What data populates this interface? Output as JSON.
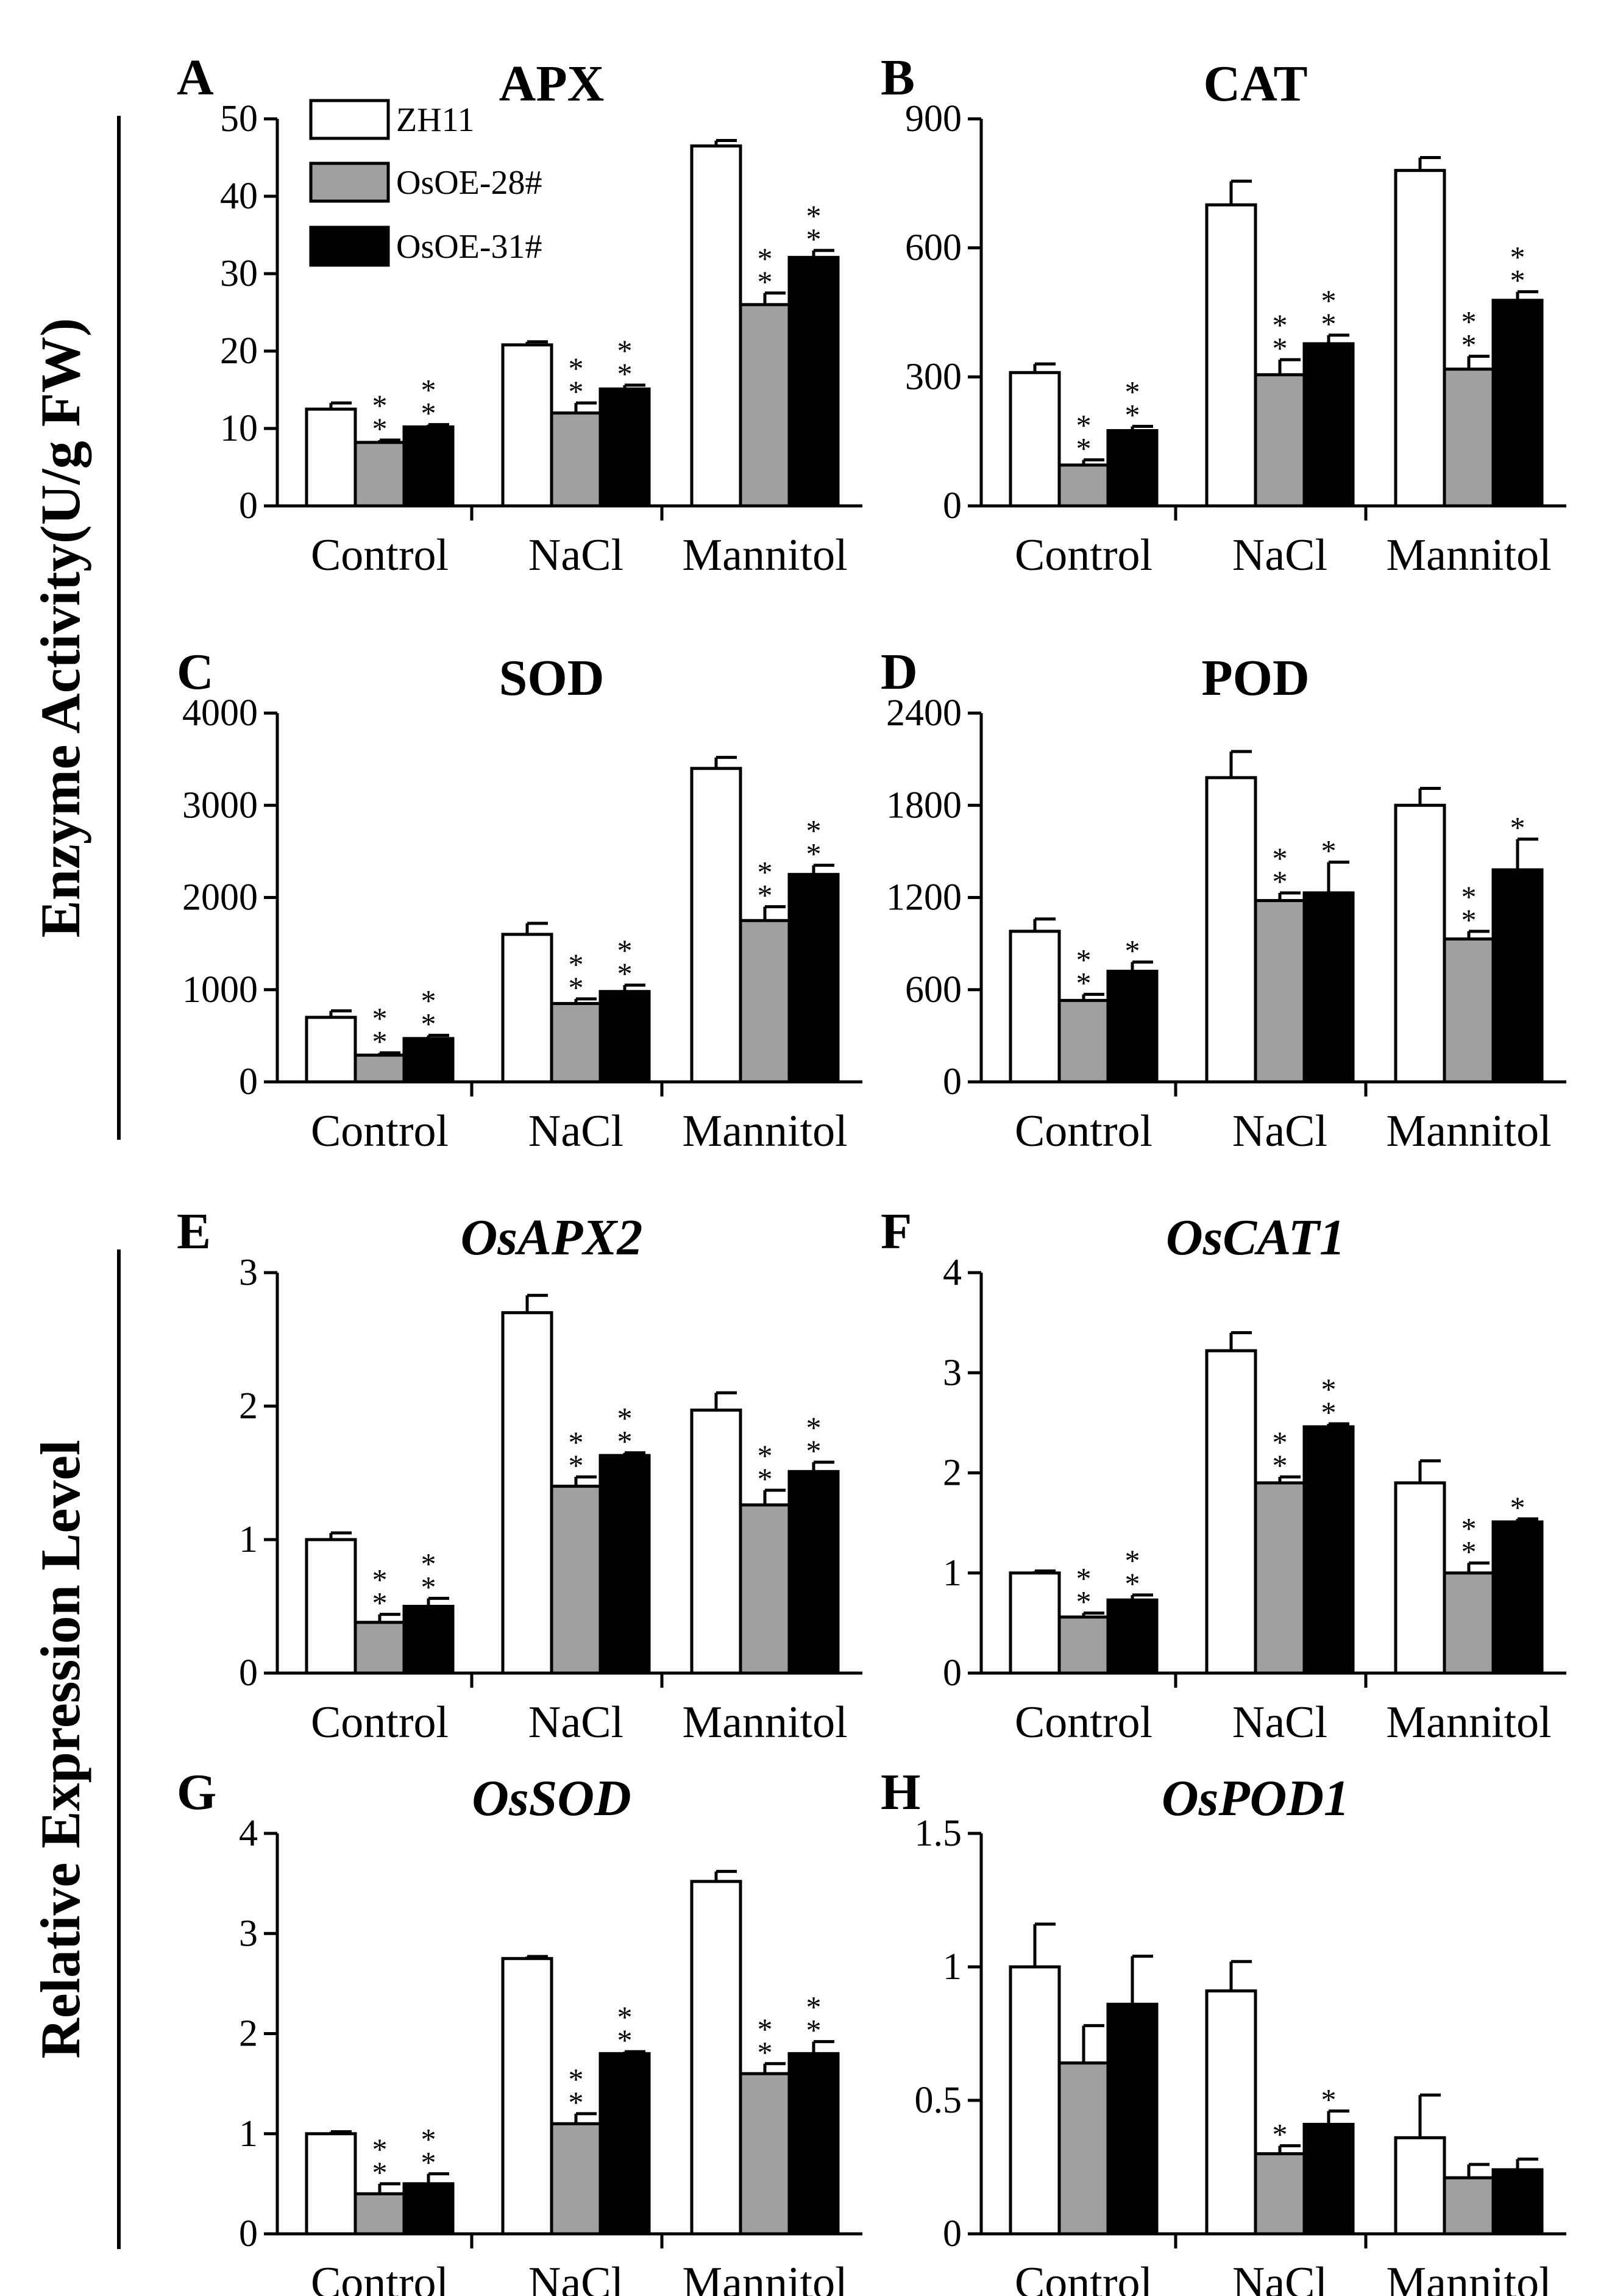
{
  "chart_data": {
    "type": "bar",
    "categories": [
      "Control",
      "NaCl",
      "Mannitol"
    ],
    "legend": [
      {
        "name": "ZH11",
        "color": "#ffffff"
      },
      {
        "name": "OsOE-28#",
        "color": "#a0a0a0"
      },
      {
        "name": "OsOE-31#",
        "color": "#000000"
      }
    ],
    "ylabels": {
      "enzyme": "Enzyme Activity(U/g FW)",
      "expression": "Relative Expression Level"
    },
    "panels": [
      {
        "letter": "A",
        "title": "APX",
        "italic": false,
        "ylim": [
          0,
          50
        ],
        "yticks": [
          "0",
          "10",
          "20",
          "30",
          "40",
          "50"
        ],
        "series": [
          {
            "name": "ZH11",
            "values": [
              12.5,
              20.8,
              46.5
            ],
            "errors": [
              0.8,
              0.4,
              0.7
            ]
          },
          {
            "name": "OsOE-28#",
            "values": [
              8.2,
              12.0,
              26.0
            ],
            "errors": [
              0.3,
              1.3,
              1.5
            ]
          },
          {
            "name": "OsOE-31#",
            "values": [
              10.2,
              15.1,
              32.1
            ],
            "errors": [
              0.3,
              0.5,
              0.9
            ]
          }
        ],
        "sig": [
          [
            "",
            "",
            ""
          ],
          [
            "**",
            "**",
            "**"
          ],
          [
            "**",
            "**",
            "**"
          ]
        ]
      },
      {
        "letter": "B",
        "title": "CAT",
        "italic": false,
        "ylim": [
          0,
          900
        ],
        "yticks": [
          "0",
          "300",
          "600",
          "900"
        ],
        "series": [
          {
            "name": "ZH11",
            "values": [
              310,
              700,
              780
            ],
            "errors": [
              20,
              55,
              30
            ]
          },
          {
            "name": "OsOE-28#",
            "values": [
              95,
              305,
              318
            ],
            "errors": [
              12,
              35,
              30
            ]
          },
          {
            "name": "OsOE-31#",
            "values": [
              175,
              377,
              478
            ],
            "errors": [
              10,
              20,
              20
            ]
          }
        ],
        "sig": [
          [
            "",
            "",
            ""
          ],
          [
            "**",
            "**",
            "**"
          ],
          [
            "**",
            "**",
            "**"
          ]
        ]
      },
      {
        "letter": "C",
        "title": "SOD",
        "italic": false,
        "ylim": [
          0,
          4000
        ],
        "yticks": [
          "0",
          "1000",
          "2000",
          "3000",
          "4000"
        ],
        "series": [
          {
            "name": "ZH11",
            "values": [
              700,
              1600,
              3400
            ],
            "errors": [
              70,
              120,
              120
            ]
          },
          {
            "name": "OsOE-28#",
            "values": [
              290,
              850,
              1750
            ],
            "errors": [
              25,
              50,
              150
            ]
          },
          {
            "name": "OsOE-31#",
            "values": [
              470,
              980,
              2250
            ],
            "errors": [
              35,
              70,
              100
            ]
          }
        ],
        "sig": [
          [
            "",
            "",
            ""
          ],
          [
            "**",
            "**",
            "**"
          ],
          [
            "**",
            "**",
            "**"
          ]
        ]
      },
      {
        "letter": "D",
        "title": "POD",
        "italic": false,
        "ylim": [
          0,
          2400
        ],
        "yticks": [
          "0",
          "600",
          "1200",
          "1800",
          "2400"
        ],
        "series": [
          {
            "name": "ZH11",
            "values": [
              980,
              1980,
              1800
            ],
            "errors": [
              80,
              170,
              110
            ]
          },
          {
            "name": "OsOE-28#",
            "values": [
              530,
              1180,
              930
            ],
            "errors": [
              40,
              50,
              50
            ]
          },
          {
            "name": "OsOE-31#",
            "values": [
              720,
              1230,
              1380
            ],
            "errors": [
              60,
              200,
              200
            ]
          }
        ],
        "sig": [
          [
            "",
            "",
            ""
          ],
          [
            "**",
            "**",
            "**"
          ],
          [
            "*",
            "*",
            "*"
          ]
        ]
      },
      {
        "letter": "E",
        "title": "OsAPX2",
        "italic": true,
        "ylim": [
          0,
          3
        ],
        "yticks": [
          "0",
          "1",
          "2",
          "3"
        ],
        "series": [
          {
            "name": "ZH11",
            "values": [
              1.0,
              2.7,
              1.97
            ],
            "errors": [
              0.05,
              0.13,
              0.13
            ]
          },
          {
            "name": "OsOE-28#",
            "values": [
              0.38,
              1.4,
              1.26
            ],
            "errors": [
              0.06,
              0.07,
              0.11
            ]
          },
          {
            "name": "OsOE-31#",
            "values": [
              0.5,
              1.63,
              1.51
            ],
            "errors": [
              0.06,
              0.02,
              0.07
            ]
          }
        ],
        "sig": [
          [
            "",
            "",
            ""
          ],
          [
            "**",
            "**",
            "**"
          ],
          [
            "**",
            "**",
            "**"
          ]
        ]
      },
      {
        "letter": "F",
        "title": "OsCAT1",
        "italic": true,
        "ylim": [
          0,
          4
        ],
        "yticks": [
          "0",
          "1",
          "2",
          "3",
          "4"
        ],
        "series": [
          {
            "name": "ZH11",
            "values": [
              1.0,
              3.22,
              1.9
            ],
            "errors": [
              0.02,
              0.18,
              0.22
            ]
          },
          {
            "name": "OsOE-28#",
            "values": [
              0.56,
              1.9,
              1.0
            ],
            "errors": [
              0.04,
              0.06,
              0.1
            ]
          },
          {
            "name": "OsOE-31#",
            "values": [
              0.73,
              2.46,
              1.51
            ],
            "errors": [
              0.05,
              0.03,
              0.03
            ]
          }
        ],
        "sig": [
          [
            "",
            "",
            ""
          ],
          [
            "**",
            "**",
            "**"
          ],
          [
            "**",
            "**",
            "*"
          ]
        ]
      },
      {
        "letter": "G",
        "title": "OsSOD",
        "italic": true,
        "ylim": [
          0,
          4
        ],
        "yticks": [
          "0",
          "1",
          "2",
          "3",
          "4"
        ],
        "series": [
          {
            "name": "ZH11",
            "values": [
              1.0,
              2.75,
              3.52
            ],
            "errors": [
              0.02,
              0.02,
              0.1
            ]
          },
          {
            "name": "OsOE-28#",
            "values": [
              0.4,
              1.1,
              1.6
            ],
            "errors": [
              0.1,
              0.1,
              0.1
            ]
          },
          {
            "name": "OsOE-31#",
            "values": [
              0.5,
              1.8,
              1.8
            ],
            "errors": [
              0.1,
              0.02,
              0.12
            ]
          }
        ],
        "sig": [
          [
            "",
            "",
            ""
          ],
          [
            "**",
            "**",
            "**"
          ],
          [
            "**",
            "**",
            "**"
          ]
        ]
      },
      {
        "letter": "H",
        "title": "OsPOD1",
        "italic": true,
        "ylim": [
          0,
          1.5
        ],
        "yticks": [
          "0",
          "0.5",
          "1",
          "1.5"
        ],
        "series": [
          {
            "name": "ZH11",
            "values": [
              1.0,
              0.91,
              0.36
            ],
            "errors": [
              0.16,
              0.11,
              0.16
            ]
          },
          {
            "name": "OsOE-28#",
            "values": [
              0.64,
              0.3,
              0.21
            ],
            "errors": [
              0.14,
              0.03,
              0.05
            ]
          },
          {
            "name": "OsOE-31#",
            "values": [
              0.86,
              0.41,
              0.24
            ],
            "errors": [
              0.18,
              0.05,
              0.04
            ]
          }
        ],
        "sig": [
          [
            "",
            "",
            ""
          ],
          [
            "",
            "*",
            ""
          ],
          [
            "",
            "*",
            ""
          ]
        ]
      }
    ]
  }
}
